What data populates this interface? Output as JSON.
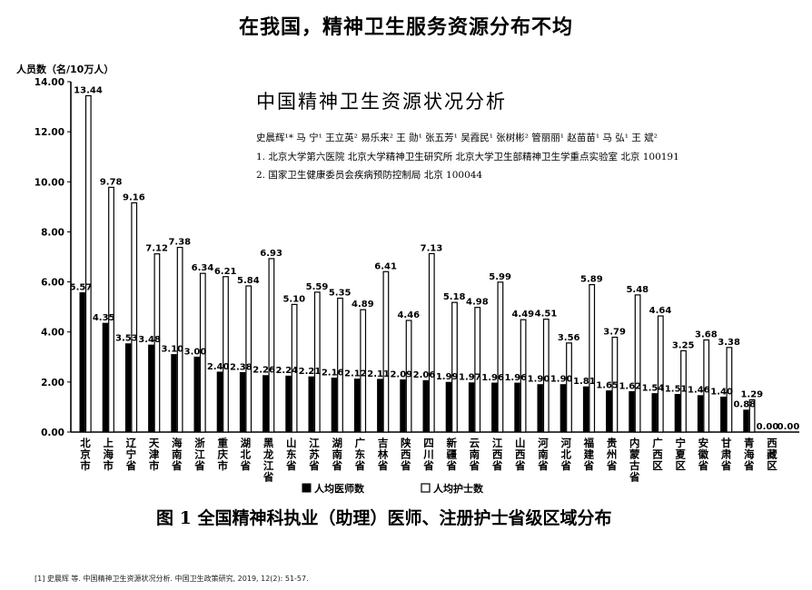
{
  "slide": {
    "title": "在我国，精神卫生服务资源分布不均",
    "reference": "[1] 史晨辉 等. 中国精神卫生资源状况分析. 中国卫生政策研究, 2019, 12(2): 51-57."
  },
  "paper": {
    "title": "中国精神卫生资源状况分析",
    "authors": "史晨辉¹*  马 宁¹  王立英²  易乐来²  王 勋¹  张五芳¹  吴霞民¹  张树彬²  管丽丽¹  赵苗苗¹  马 弘¹  王 斌²",
    "affiliation1": "1. 北京大学第六医院   北京大学精神卫生研究所   北京大学卫生部精神卫生学重点实验室   北京   100191",
    "affiliation2": "2. 国家卫生健康委员会疾病预防控制局   北京   100044"
  },
  "chart_data": {
    "type": "bar",
    "title": "图 1    全国精神科执业（助理）医师、注册护士省级区域分布",
    "ylabel": "人员数（名/10万人）",
    "ylim": [
      0,
      14
    ],
    "yticks": [
      "0.00",
      "2.00",
      "4.00",
      "6.00",
      "8.00",
      "10.00",
      "12.00",
      "14.00"
    ],
    "legend_position": "bottom",
    "grid": false,
    "categories": [
      "北京市",
      "上海市",
      "辽宁省",
      "天津市",
      "海南省",
      "浙江省",
      "重庆市",
      "湖北省",
      "黑龙江省",
      "山东省",
      "江苏省",
      "湖南省",
      "广东省",
      "吉林省",
      "陕西省",
      "四川省",
      "新疆省",
      "云南省",
      "江西省",
      "山西省",
      "河南省",
      "河北省",
      "福建省",
      "贵州省",
      "内蒙古省",
      "广西区",
      "宁夏区",
      "安徽省",
      "甘肃省",
      "青海省",
      "西藏区"
    ],
    "series": [
      {
        "name": "人均医师数",
        "color": "#000000",
        "values": [
          5.57,
          4.35,
          3.53,
          3.48,
          3.1,
          3.0,
          2.4,
          2.38,
          2.26,
          2.24,
          2.21,
          2.16,
          2.12,
          2.11,
          2.09,
          2.06,
          1.99,
          1.97,
          1.96,
          1.96,
          1.9,
          1.9,
          1.81,
          1.65,
          1.62,
          1.54,
          1.51,
          1.46,
          1.4,
          0.88,
          0.0
        ],
        "labels": [
          "5.57",
          "4.35",
          "3.53",
          "3.48",
          "3.10",
          "3.00",
          "2.40",
          "2.38",
          "2.26",
          "2.24",
          "2.21",
          "2.16",
          "2.12",
          "2.11",
          "2.09",
          "2.06",
          "1.99",
          "1.97",
          "1.96",
          "1.96",
          "1.90",
          "1.90",
          "1.81",
          "1.65",
          "1.62",
          "1.54",
          "1.51",
          "1.46",
          "1.40",
          "0.88",
          "0.00"
        ]
      },
      {
        "name": "人均护士数",
        "color": "#ffffff",
        "values": [
          13.44,
          9.78,
          9.16,
          7.12,
          7.38,
          6.34,
          6.21,
          5.84,
          6.93,
          5.1,
          5.59,
          5.35,
          4.89,
          6.41,
          4.46,
          7.13,
          5.18,
          4.98,
          5.99,
          4.49,
          4.51,
          3.56,
          5.89,
          3.79,
          5.48,
          4.64,
          3.25,
          3.68,
          3.38,
          1.29,
          0.0
        ],
        "labels": [
          "13.44",
          "9.78",
          "9.16",
          "7.12",
          "7.38",
          "6.34",
          "6.21",
          "5.84",
          "6.93",
          "5.10",
          "5.59",
          "5.35",
          "4.89",
          "6.41",
          "4.46",
          "7.13",
          "5.18",
          "4.98",
          "5.99",
          "4.49",
          "4.51",
          "3.56",
          "5.89",
          "3.79",
          "5.48",
          "4.64",
          "3.25",
          "3.68",
          "3.38",
          "1.29",
          "0.00"
        ]
      }
    ]
  }
}
